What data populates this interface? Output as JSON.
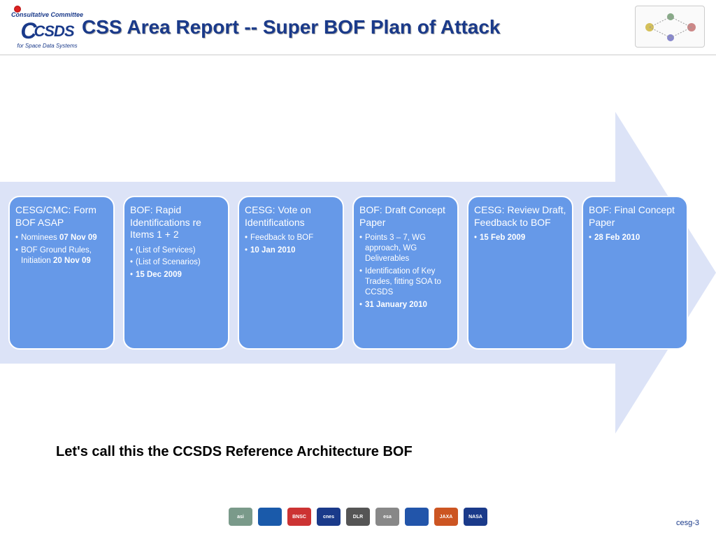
{
  "header": {
    "logo_committee": "Consultative Committee",
    "logo_for": "for Space Data Systems",
    "title": "CSS Area Report -- Super BOF Plan of Attack"
  },
  "arrow": {
    "body_color": "#dce3f7",
    "card_bg": "#6699e8",
    "card_border": "#ffffff",
    "card_text": "#ffffff"
  },
  "cards": [
    {
      "title": "CESG/CMC: Form BOF ASAP",
      "items": [
        {
          "prefix": "Nominees ",
          "bold": "07 Nov 09"
        },
        {
          "prefix": "BOF Ground Rules, Initiation ",
          "bold": "20  Nov 09"
        }
      ]
    },
    {
      "title": "BOF: Rapid Identifications re Items 1 + 2",
      "items": [
        {
          "prefix": "(List of Services)",
          "bold": ""
        },
        {
          "prefix": "(List of Scenarios)",
          "bold": ""
        },
        {
          "prefix": "",
          "bold": "15 Dec 2009"
        }
      ]
    },
    {
      "title": "CESG: Vote on Identifications",
      "items": [
        {
          "prefix": "Feedback to BOF",
          "bold": ""
        },
        {
          "prefix": "",
          "bold": "10 Jan 2010"
        }
      ]
    },
    {
      "title": "BOF: Draft Concept Paper",
      "items": [
        {
          "prefix": "Points 3 – 7, WG approach,  WG Deliverables",
          "bold": ""
        },
        {
          "prefix": "Identification of Key Trades, fitting SOA to CCSDS",
          "bold": ""
        },
        {
          "prefix": "",
          "bold": "31 January 2010"
        }
      ]
    },
    {
      "title": "CESG: Review Draft, Feedback to BOF",
      "items": [
        {
          "prefix": "",
          "bold": "15 Feb 2009"
        }
      ]
    },
    {
      "title": "BOF: Final Concept Paper",
      "items": [
        {
          "prefix": " ",
          "bold": "28 Feb 2010"
        }
      ]
    }
  ],
  "subtitle": "Let's call this the CCSDS Reference Architecture BOF",
  "footer": {
    "logos": [
      {
        "label": "asi",
        "bg": "#7a9a8a"
      },
      {
        "label": "",
        "bg": "#1a5aaa"
      },
      {
        "label": "BNSC",
        "bg": "#cc3333"
      },
      {
        "label": "cnes",
        "bg": "#1a3a8a"
      },
      {
        "label": "DLR",
        "bg": "#555555"
      },
      {
        "label": "esa",
        "bg": "#888888"
      },
      {
        "label": "",
        "bg": "#2255aa"
      },
      {
        "label": "JAXA",
        "bg": "#cc5522"
      },
      {
        "label": "NASA",
        "bg": "#1a3a8a"
      }
    ],
    "page": "cesg-3"
  }
}
